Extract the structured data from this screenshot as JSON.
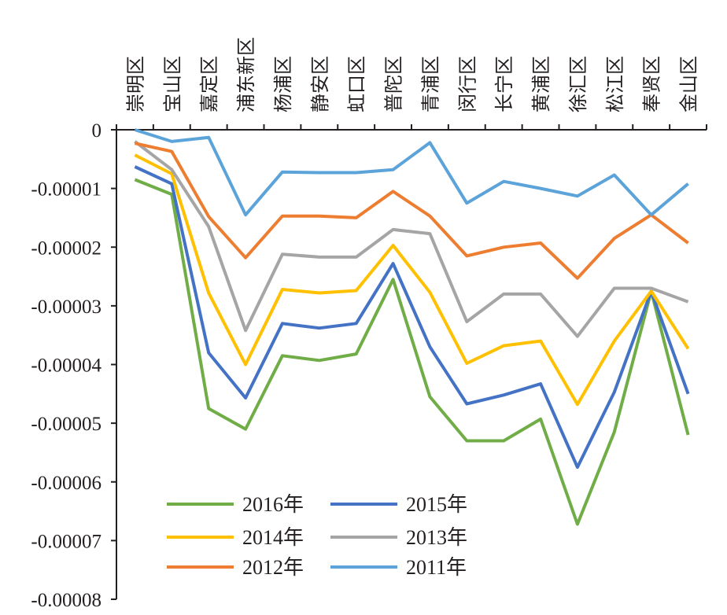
{
  "chart_data": {
    "type": "line",
    "title": "",
    "xlabel": "",
    "ylabel": "",
    "ylim": [
      -8e-05,
      0
    ],
    "y_ticks": [
      0,
      -1e-05,
      -2e-05,
      -3e-05,
      -4e-05,
      -5e-05,
      -6e-05,
      -7e-05,
      -8e-05
    ],
    "y_tick_labels": [
      "0",
      "-0.00001",
      "-0.00002",
      "-0.00003",
      "-0.00004",
      "-0.00005",
      "-0.00006",
      "-0.00007",
      "-0.00008"
    ],
    "x_axis_position": "top",
    "grid": false,
    "legend_position": "bottom-left",
    "categories": [
      "崇明区",
      "宝山区",
      "嘉定区",
      "浦东新区",
      "杨浦区",
      "静安区",
      "虹口区",
      "普陀区",
      "青浦区",
      "闵行区",
      "长宁区",
      "黄浦区",
      "徐汇区",
      "松江区",
      "奉贤区",
      "金山区"
    ],
    "series": [
      {
        "name": "2016年",
        "color": "#70ad47",
        "values": [
          -8.5e-06,
          -1.1e-05,
          -4.75e-05,
          -5.1e-05,
          -3.85e-05,
          -3.93e-05,
          -3.82e-05,
          -2.55e-05,
          -4.55e-05,
          -5.3e-05,
          -5.3e-05,
          -4.93e-05,
          -6.72e-05,
          -5.15e-05,
          -2.75e-05,
          -5.2e-05
        ]
      },
      {
        "name": "2015年",
        "color": "#4472c4",
        "values": [
          -6.3e-06,
          -9.2e-06,
          -3.8e-05,
          -4.57e-05,
          -3.3e-05,
          -3.38e-05,
          -3.3e-05,
          -2.28e-05,
          -3.7e-05,
          -4.67e-05,
          -4.52e-05,
          -4.33e-05,
          -5.75e-05,
          -4.47e-05,
          -2.75e-05,
          -4.5e-05
        ]
      },
      {
        "name": "2014年",
        "color": "#ffc000",
        "values": [
          -4.3e-06,
          -7.5e-06,
          -2.78e-05,
          -4e-05,
          -2.72e-05,
          -2.78e-05,
          -2.74e-05,
          -1.97e-05,
          -2.77e-05,
          -3.98e-05,
          -3.68e-05,
          -3.6e-05,
          -4.68e-05,
          -3.6e-05,
          -2.75e-05,
          -3.73e-05
        ]
      },
      {
        "name": "2013年",
        "color": "#a5a5a5",
        "values": [
          -2e-06,
          -6.8e-06,
          -1.65e-05,
          -3.42e-05,
          -2.12e-05,
          -2.17e-05,
          -2.17e-05,
          -1.7e-05,
          -1.77e-05,
          -3.27e-05,
          -2.8e-05,
          -2.8e-05,
          -3.52e-05,
          -2.7e-05,
          -2.7e-05,
          -2.93e-05
        ]
      },
      {
        "name": "2012年",
        "color": "#ed7d31",
        "values": [
          -2.3e-06,
          -3.7e-06,
          -1.48e-05,
          -2.18e-05,
          -1.47e-05,
          -1.47e-05,
          -1.5e-05,
          -1.05e-05,
          -1.47e-05,
          -2.15e-05,
          -2e-05,
          -1.93e-05,
          -2.53e-05,
          -1.85e-05,
          -1.45e-05,
          -1.93e-05
        ]
      },
      {
        "name": "2011年",
        "color": "#5ba3d9",
        "values": [
          0,
          -2e-06,
          -1.3e-06,
          -1.45e-05,
          -7.2e-06,
          -7.3e-06,
          -7.3e-06,
          -6.8e-06,
          -2.2e-06,
          -1.25e-05,
          -8.8e-06,
          -1e-05,
          -1.13e-05,
          -7.7e-06,
          -1.45e-05,
          -9.2e-06
        ]
      }
    ]
  }
}
